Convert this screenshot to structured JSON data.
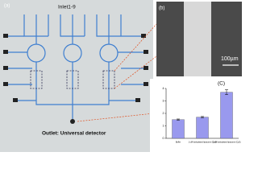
{
  "panel_a": {
    "label": "(a)",
    "inlet": "Inlet1-9",
    "outlet": "Outlet: Universal detector"
  },
  "panel_b": {
    "label": "(b)",
    "scale": "100µm"
  },
  "chart_data": {
    "type": "bar",
    "label": "(C)",
    "categories": [
      "Buffer",
      "1 uM biotinylated liposome (Cy3)",
      "1 uM biotinylated liposome (Cy5)"
    ],
    "values": [
      1.5,
      1.7,
      3.7
    ],
    "errors": [
      0.05,
      0.05,
      0.2
    ],
    "color": "#9999ee",
    "ylim": [
      0,
      4
    ],
    "yticks": [
      0,
      1,
      2,
      3,
      4
    ]
  }
}
